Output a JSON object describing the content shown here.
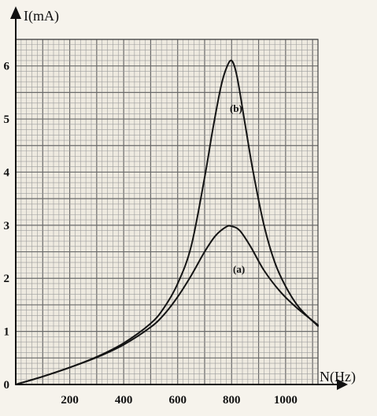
{
  "chart_data": {
    "type": "line",
    "title": "",
    "xlabel": "N(Hz)",
    "ylabel": "I(mA)",
    "xlim": [
      0,
      1120
    ],
    "ylim": [
      0,
      6.5
    ],
    "x_ticks": [
      0,
      200,
      400,
      600,
      800,
      1000
    ],
    "y_ticks": [
      0,
      1,
      2,
      3,
      4,
      5,
      6
    ],
    "x_tick_labels": [
      "0",
      "200",
      "400",
      "600",
      "800",
      "1000"
    ],
    "y_tick_labels": [
      "0",
      "1",
      "2",
      "3",
      "4",
      "5",
      "6"
    ],
    "grid": true,
    "legend": "none",
    "series": [
      {
        "name": "(b)",
        "x": [
          0,
          100,
          200,
          300,
          400,
          500,
          550,
          600,
          650,
          700,
          730,
          760,
          780,
          800,
          820,
          850,
          880,
          920,
          960,
          1000,
          1050,
          1120
        ],
        "values": [
          0,
          0.15,
          0.32,
          0.52,
          0.78,
          1.15,
          1.45,
          1.9,
          2.6,
          3.9,
          4.8,
          5.6,
          5.95,
          6.1,
          5.8,
          4.9,
          4.0,
          3.0,
          2.3,
          1.85,
          1.45,
          1.1
        ]
      },
      {
        "name": "(a)",
        "x": [
          0,
          100,
          200,
          300,
          400,
          500,
          550,
          600,
          650,
          700,
          740,
          780,
          800,
          830,
          870,
          920,
          980,
          1040,
          1120
        ],
        "values": [
          0,
          0.15,
          0.32,
          0.51,
          0.75,
          1.08,
          1.32,
          1.65,
          2.05,
          2.5,
          2.8,
          2.97,
          2.98,
          2.9,
          2.6,
          2.15,
          1.75,
          1.45,
          1.12
        ]
      }
    ]
  }
}
